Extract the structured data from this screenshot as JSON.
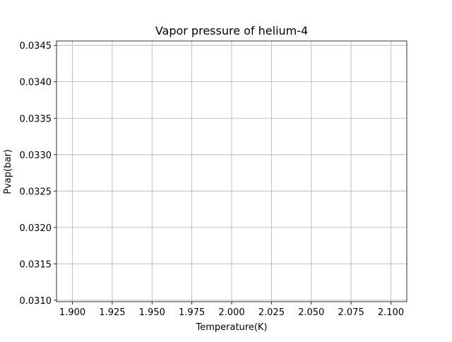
{
  "chart_data": {
    "type": "line",
    "title": "Vapor pressure of helium-4",
    "xlabel": "Temperature(K)",
    "ylabel": "Pvap(bar)",
    "xlim": [
      1.89,
      2.11
    ],
    "ylim": [
      0.03098,
      0.03456
    ],
    "x_ticks": [
      1.9,
      1.925,
      1.95,
      1.975,
      2.0,
      2.025,
      2.05,
      2.075,
      2.1
    ],
    "x_tick_labels": [
      "1.900",
      "1.925",
      "1.950",
      "1.975",
      "2.000",
      "2.025",
      "2.050",
      "2.075",
      "2.100"
    ],
    "y_ticks": [
      0.031,
      0.0315,
      0.032,
      0.0325,
      0.033,
      0.0335,
      0.034,
      0.0345
    ],
    "y_tick_labels": [
      "0.0310",
      "0.0315",
      "0.0320",
      "0.0325",
      "0.0330",
      "0.0335",
      "0.0340",
      "0.0345"
    ],
    "grid": true,
    "series": []
  }
}
